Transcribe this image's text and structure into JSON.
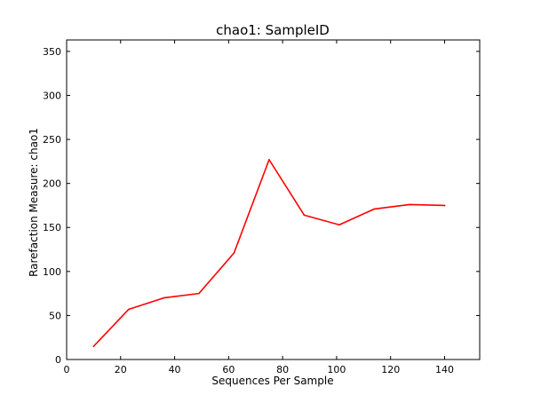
{
  "chart_data": {
    "type": "line",
    "title": "chao1: SampleID",
    "xlabel": "Sequences Per Sample",
    "ylabel": "Rarefaction Measure: chao1",
    "xlim": [
      0,
      153
    ],
    "ylim": [
      0,
      363
    ],
    "x_ticks": [
      0,
      20,
      40,
      60,
      80,
      100,
      120,
      140
    ],
    "y_ticks": [
      0,
      50,
      100,
      150,
      200,
      250,
      300,
      350
    ],
    "grid": false,
    "series": [
      {
        "color": "#ff0000",
        "x": [
          10,
          23,
          36,
          49,
          62,
          75,
          88,
          101,
          114,
          127,
          140
        ],
        "y": [
          15,
          57,
          70,
          75,
          121,
          227,
          164,
          153,
          171,
          176,
          175
        ]
      }
    ]
  }
}
